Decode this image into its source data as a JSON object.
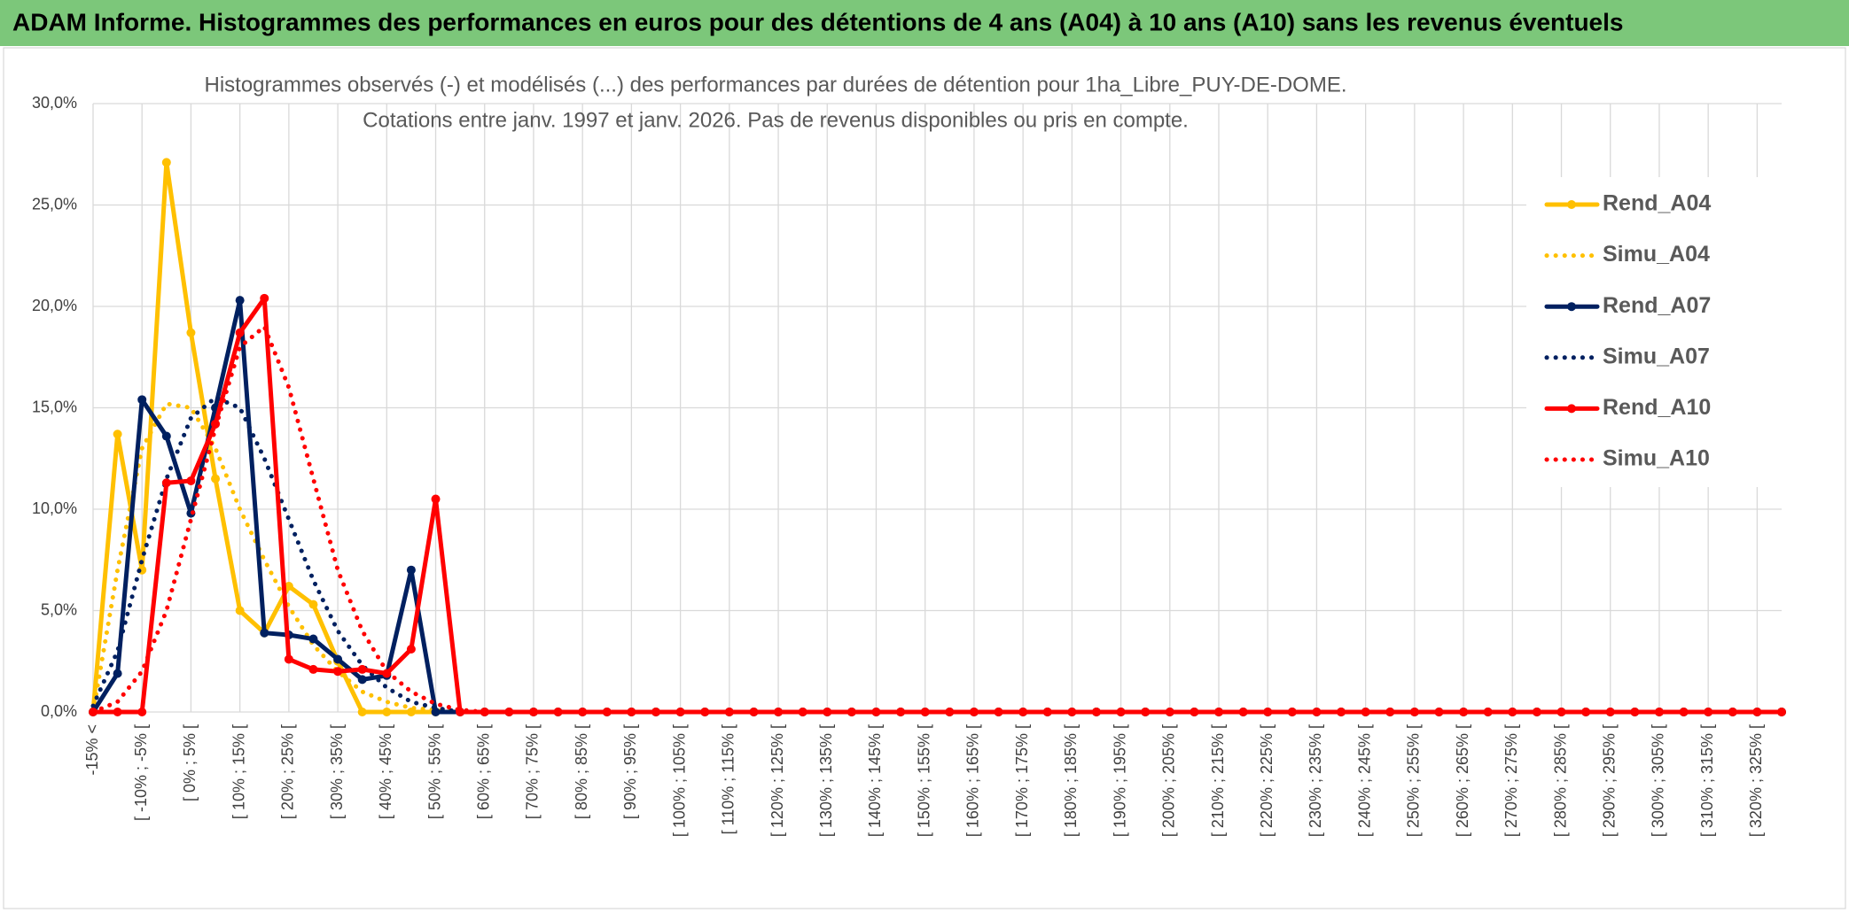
{
  "chart_data": {
    "type": "line",
    "title": "ADAM Informe. Histogrammes des performances en euros pour des détentions de 4 ans (A04) à 10 ans (A10) sans les revenus éventuels",
    "subtitle": [
      "Histogrammes observés (-) et modélisés (...) des performances par durées de détention pour 1ha_Libre_PUY-DE-DOME.",
      "Cotations entre janv. 1997 et janv. 2026. Pas de revenus disponibles ou pris en compte."
    ],
    "categories": [
      "-15% <",
      null,
      "[ -10% ; -5% [",
      null,
      "[ 0% ; 5% [",
      null,
      "[ 10% ; 15% [",
      null,
      "[ 20% ; 25% [",
      null,
      "[ 30% ; 35% [",
      null,
      "[ 40% ; 45% [",
      null,
      "[ 50% ; 55% [",
      null,
      "[ 60% ; 65% [",
      null,
      "[ 70% ; 75% [",
      null,
      "[ 80% ; 85% [",
      null,
      "[ 90% ; 95% [",
      null,
      "[ 100% ; 105% [",
      null,
      "[ 110% ; 115% [",
      null,
      "[ 120% ; 125% [",
      null,
      "[ 130% ; 135% [",
      null,
      "[ 140% ; 145% [",
      null,
      "[ 150% ; 155% [",
      null,
      "[ 160% ; 165% [",
      null,
      "[ 170% ; 175% [",
      null,
      "[ 180% ; 185% [",
      null,
      "[ 190% ; 195% [",
      null,
      "[ 200% ; 205% [",
      null,
      "[ 210% ; 215% [",
      null,
      "[ 220% ; 225% [",
      null,
      "[ 230% ; 235% [",
      null,
      "[ 240% ; 245% [",
      null,
      "[ 250% ; 255% [",
      null,
      "[ 260% ; 265% [",
      null,
      "[ 270% ; 275% [",
      null,
      "[ 280% ; 285% [",
      null,
      "[ 290% ; 295% [",
      null,
      "[ 300% ; 305% [",
      null,
      "[ 310% ; 315% [",
      null,
      "[ 320% ; 325% [",
      null
    ],
    "series": [
      {
        "name": "Rend_A04",
        "color": "#ffc000",
        "dash": false,
        "marker": true,
        "values": [
          0,
          13.7,
          7,
          27.1,
          18.7,
          11.5,
          5,
          3.9,
          6.2,
          5.3,
          2.5,
          0,
          0,
          0,
          0,
          0,
          0,
          0,
          0,
          0,
          0,
          0,
          0,
          0,
          0,
          0,
          0,
          0,
          0,
          0,
          0,
          0,
          0,
          0,
          0,
          0,
          0,
          0,
          0,
          0,
          0,
          0,
          0,
          0,
          0,
          0,
          0,
          0,
          0,
          0,
          0,
          0,
          0,
          0,
          0,
          0,
          0,
          0,
          0,
          0,
          0,
          0,
          0,
          0,
          0,
          0,
          0,
          0,
          0,
          0
        ]
      },
      {
        "name": "Simu_A04",
        "color": "#ffc000",
        "dash": true,
        "marker": false,
        "values": [
          0,
          7,
          13,
          15.2,
          15,
          13,
          10,
          7.5,
          5.2,
          3.3,
          2,
          1,
          0.5,
          0.2,
          0.1,
          0,
          0,
          0,
          0,
          0,
          0,
          0,
          0,
          0,
          0,
          0,
          0,
          0,
          0,
          0,
          0,
          0,
          0,
          0,
          0,
          0,
          0,
          0,
          0,
          0,
          0,
          0,
          0,
          0,
          0,
          0,
          0,
          0,
          0,
          0,
          0,
          0,
          0,
          0,
          0,
          0,
          0,
          0,
          0,
          0,
          0,
          0,
          0,
          0,
          0,
          0,
          0,
          0,
          0,
          0
        ]
      },
      {
        "name": "Rend_A07",
        "color": "#002060",
        "dash": false,
        "marker": true,
        "values": [
          0,
          1.9,
          15.4,
          13.6,
          9.8,
          15,
          20.3,
          3.9,
          3.8,
          3.6,
          2.6,
          1.6,
          1.8,
          7,
          0,
          0,
          0,
          0,
          0,
          0,
          0,
          0,
          0,
          0,
          0,
          0,
          0,
          0,
          0,
          0,
          0,
          0,
          0,
          0,
          0,
          0,
          0,
          0,
          0,
          0,
          0,
          0,
          0,
          0,
          0,
          0,
          0,
          0,
          0,
          0,
          0,
          0,
          0,
          0,
          0,
          0,
          0,
          0,
          0,
          0,
          0,
          0,
          0,
          0,
          0,
          0,
          0,
          0,
          0,
          0
        ]
      },
      {
        "name": "Simu_A07",
        "color": "#002060",
        "dash": true,
        "marker": false,
        "values": [
          0.3,
          3,
          7.5,
          11.5,
          14.5,
          15.5,
          15,
          12.5,
          9.5,
          6.5,
          4,
          2.3,
          1.2,
          0.5,
          0.2,
          0,
          0,
          0,
          0,
          0,
          0,
          0,
          0,
          0,
          0,
          0,
          0,
          0,
          0,
          0,
          0,
          0,
          0,
          0,
          0,
          0,
          0,
          0,
          0,
          0,
          0,
          0,
          0,
          0,
          0,
          0,
          0,
          0,
          0,
          0,
          0,
          0,
          0,
          0,
          0,
          0,
          0,
          0,
          0,
          0,
          0,
          0,
          0,
          0,
          0,
          0,
          0,
          0,
          0,
          0
        ]
      },
      {
        "name": "Rend_A10",
        "color": "#ff0000",
        "dash": false,
        "marker": true,
        "values": [
          0,
          0,
          0,
          11.3,
          11.4,
          14.2,
          18.7,
          20.4,
          2.6,
          2.1,
          2,
          2.1,
          1.9,
          3.1,
          10.5,
          0,
          0,
          0,
          0,
          0,
          0,
          0,
          0,
          0,
          0,
          0,
          0,
          0,
          0,
          0,
          0,
          0,
          0,
          0,
          0,
          0,
          0,
          0,
          0,
          0,
          0,
          0,
          0,
          0,
          0,
          0,
          0,
          0,
          0,
          0,
          0,
          0,
          0,
          0,
          0,
          0,
          0,
          0,
          0,
          0,
          0,
          0,
          0,
          0,
          0,
          0,
          0,
          0,
          0,
          0
        ]
      },
      {
        "name": "Simu_A10",
        "color": "#ff0000",
        "dash": true,
        "marker": false,
        "values": [
          0,
          0.5,
          2,
          5,
          9.5,
          14,
          18,
          19,
          16,
          11.5,
          7,
          4,
          2,
          1,
          0.4,
          0.1,
          0,
          0,
          0,
          0,
          0,
          0,
          0,
          0,
          0,
          0,
          0,
          0,
          0,
          0,
          0,
          0,
          0,
          0,
          0,
          0,
          0,
          0,
          0,
          0,
          0,
          0,
          0,
          0,
          0,
          0,
          0,
          0,
          0,
          0,
          0,
          0,
          0,
          0,
          0,
          0,
          0,
          0,
          0,
          0,
          0,
          0,
          0,
          0,
          0,
          0,
          0,
          0,
          0,
          0
        ]
      }
    ],
    "ylim": [
      0,
      30
    ],
    "yticks": [
      {
        "value": 0,
        "label": "0,0%"
      },
      {
        "value": 5,
        "label": "5,0%"
      },
      {
        "value": 10,
        "label": "10,0%"
      },
      {
        "value": 15,
        "label": "15,0%"
      },
      {
        "value": 20,
        "label": "20,0%"
      },
      {
        "value": 25,
        "label": "25,0%"
      },
      {
        "value": 30,
        "label": "30,0%"
      }
    ],
    "grid": true,
    "legend": "right"
  }
}
